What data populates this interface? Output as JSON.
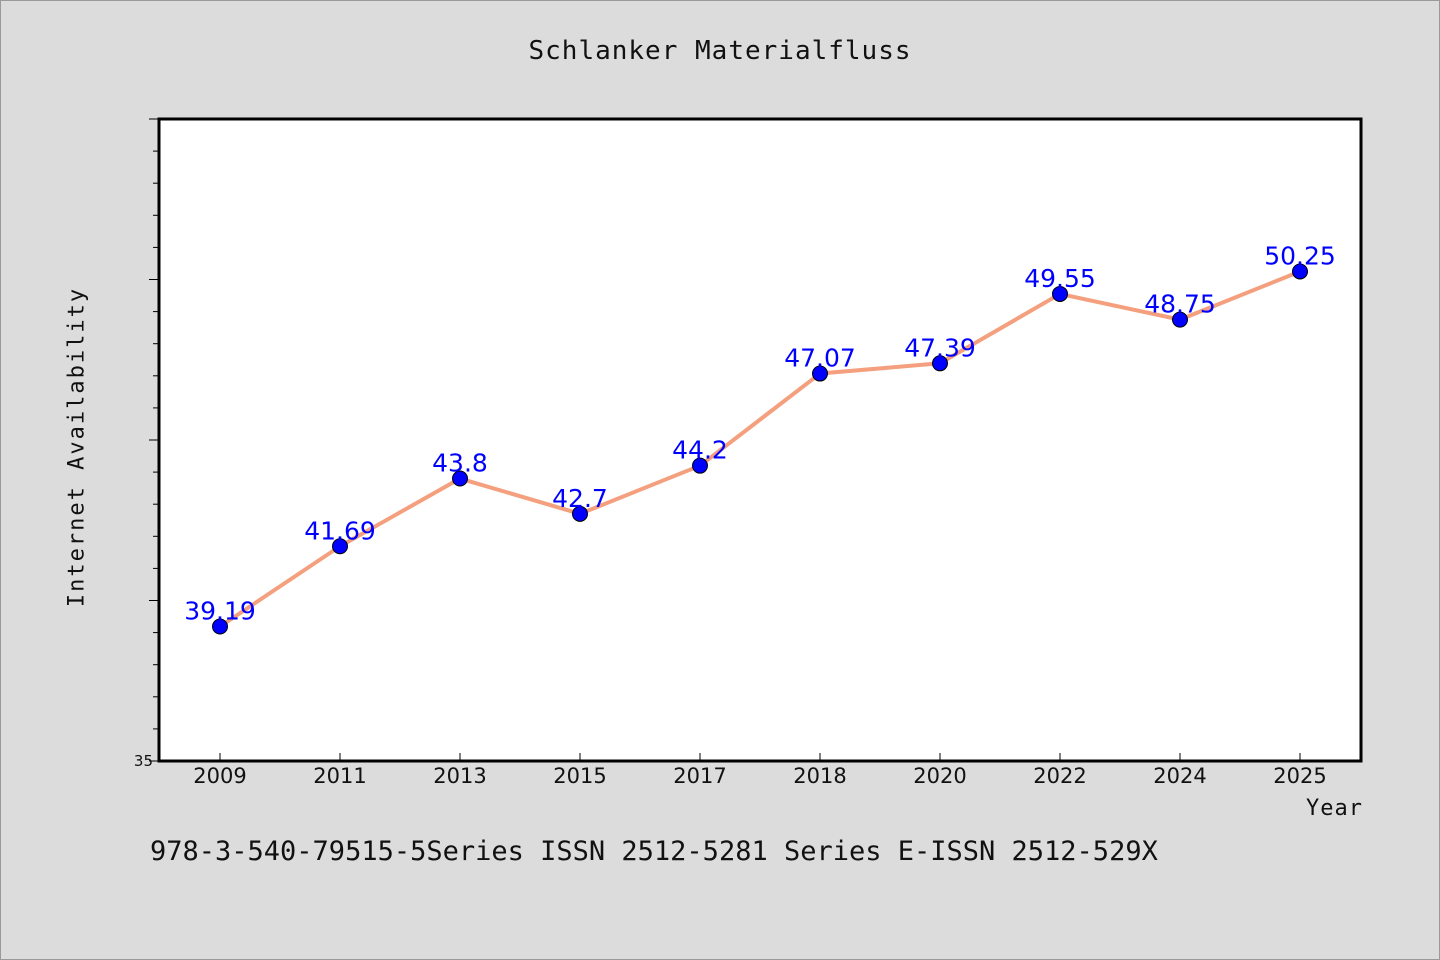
{
  "title": "Schlanker Materialfluss",
  "footer": "978-3-540-79515-5Series ISSN 2512-5281 Series E-ISSN 2512-529X",
  "colors": {
    "background": "#dcdcdc",
    "plot_background": "#ffffff",
    "line": "#f4a07e",
    "marker": "#0000ff",
    "data_label": "#0000ff"
  },
  "chart_data": {
    "type": "line",
    "title": "Schlanker Materialfluss",
    "xlabel": "Year",
    "ylabel": "Internet Availability",
    "categories": [
      "2009",
      "2011",
      "2013",
      "2015",
      "2017",
      "2018",
      "2020",
      "2022",
      "2024",
      "2025"
    ],
    "series": [
      {
        "values": [
          39.19,
          41.69,
          43.8,
          42.7,
          44.2,
          47.07,
          47.39,
          49.55,
          48.75,
          50.25
        ],
        "data_labels": [
          "39.19",
          "41.69",
          "43.8",
          "42.7",
          "44.2",
          "47.07",
          "47.39",
          "49.55",
          "48.75",
          "50.25"
        ],
        "marker": "circle"
      }
    ],
    "ylim": [
      35,
      55
    ],
    "yticks_labeled": [
      "35"
    ],
    "grid": false,
    "legend": "none"
  }
}
